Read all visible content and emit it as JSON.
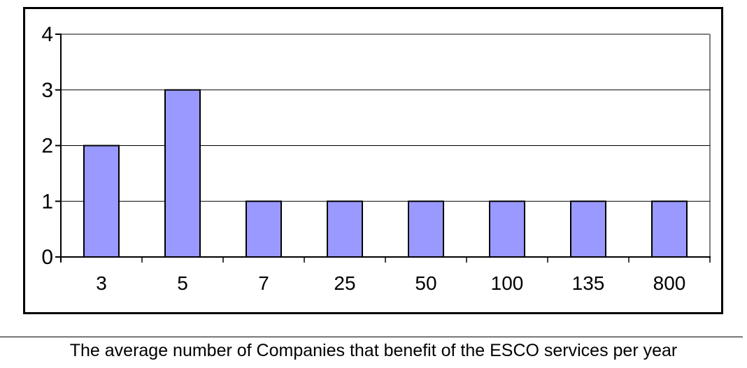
{
  "figure": {
    "caption": "The average number of Companies that benefit of the ESCO services per year"
  },
  "chart_data": {
    "type": "bar",
    "title": "",
    "xlabel": "",
    "ylabel": "",
    "categories": [
      "3",
      "5",
      "7",
      "25",
      "50",
      "100",
      "135",
      "800"
    ],
    "values": [
      2,
      3,
      1,
      1,
      1,
      1,
      1,
      1
    ],
    "ylim": [
      0,
      4
    ],
    "yticks": [
      0,
      1,
      2,
      3,
      4
    ],
    "grid": true,
    "legend": "none",
    "colors": {
      "bar_fill": "#9999FF",
      "bar_border": "#000000",
      "gridline": "#000000",
      "plot_border": "#808080",
      "axis": "#000000",
      "frame_border": "#000000",
      "background": "#FFFFFF"
    }
  }
}
